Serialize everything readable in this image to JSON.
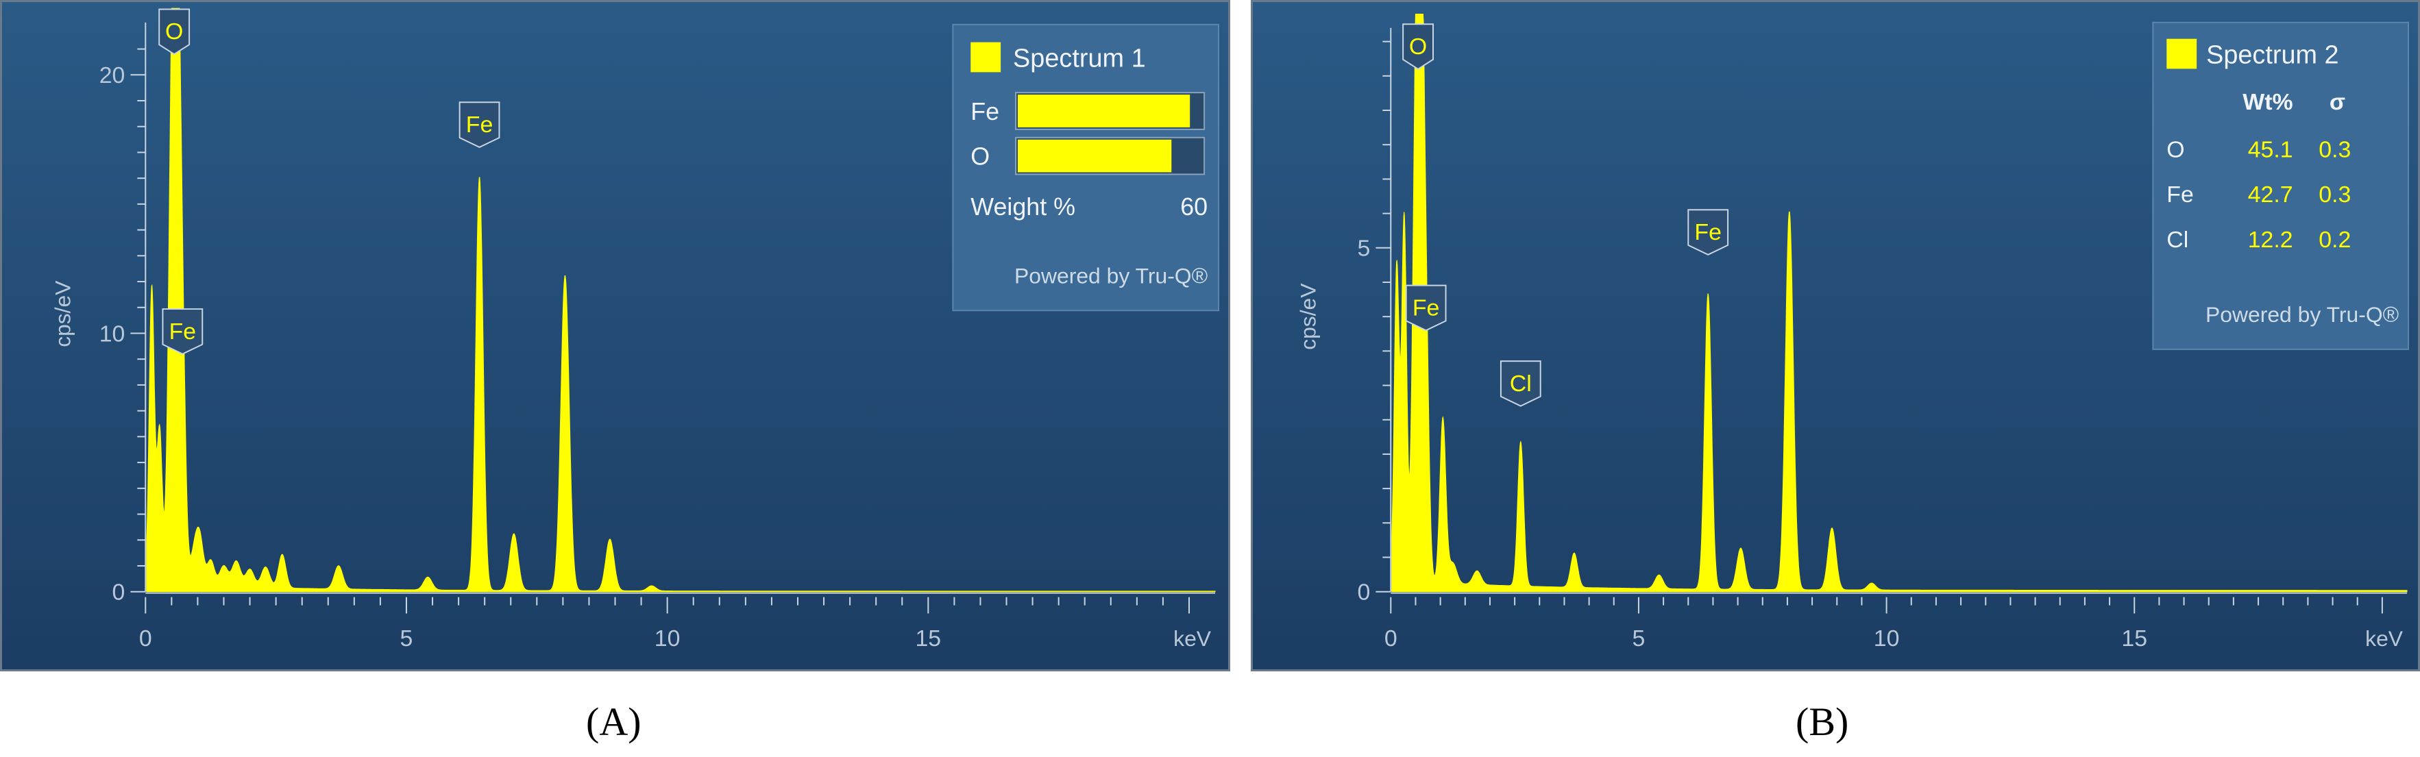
{
  "chart_data": [
    {
      "type": "area",
      "panel_label": "A",
      "xlabel": "keV",
      "ylabel": "cps/eV",
      "xlim": [
        0,
        20.5
      ],
      "ylim": [
        0,
        21.5
      ],
      "x_ticks": [
        0,
        5,
        10,
        15
      ],
      "y_ticks": [
        0,
        10,
        20
      ],
      "peaks": [
        {
          "x": 0.12,
          "y": 11.5,
          "w": 0.05
        },
        {
          "x": 0.27,
          "y": 6.0,
          "w": 0.05
        },
        {
          "x": 0.52,
          "y": 21.5,
          "w": 0.07
        },
        {
          "x": 0.62,
          "y": 16.0,
          "w": 0.06
        },
        {
          "x": 0.71,
          "y": 8.0,
          "w": 0.06
        },
        {
          "x": 0.93,
          "y": 1.2,
          "w": 0.07
        },
        {
          "x": 1.04,
          "y": 1.8,
          "w": 0.07
        },
        {
          "x": 1.25,
          "y": 1.0,
          "w": 0.07
        },
        {
          "x": 1.5,
          "y": 0.8,
          "w": 0.08
        },
        {
          "x": 1.74,
          "y": 1.0,
          "w": 0.08
        },
        {
          "x": 2.0,
          "y": 0.7,
          "w": 0.08
        },
        {
          "x": 2.3,
          "y": 0.8,
          "w": 0.08
        },
        {
          "x": 2.62,
          "y": 1.3,
          "w": 0.07
        },
        {
          "x": 3.7,
          "y": 0.9,
          "w": 0.08
        },
        {
          "x": 5.41,
          "y": 0.5,
          "w": 0.08
        },
        {
          "x": 6.4,
          "y": 16.0,
          "w": 0.07
        },
        {
          "x": 7.06,
          "y": 2.2,
          "w": 0.08
        },
        {
          "x": 8.04,
          "y": 12.2,
          "w": 0.08
        },
        {
          "x": 8.9,
          "y": 2.0,
          "w": 0.08
        },
        {
          "x": 9.7,
          "y": 0.2,
          "w": 0.08
        }
      ],
      "baseline": 0.3,
      "peak_labels": [
        {
          "text": "O",
          "x": 0.55,
          "y": 20.8
        },
        {
          "text": "Fe",
          "x": 0.71,
          "y": 9.2
        },
        {
          "text": "Fe",
          "x": 6.4,
          "y": 17.2
        }
      ],
      "legend": {
        "title": "Spectrum 1",
        "bars": [
          {
            "element": "Fe",
            "value": 56
          },
          {
            "element": "O",
            "value": 50
          }
        ],
        "axis_label": "Weight %",
        "axis_max": "60",
        "footer": "Powered by Tru-Q®"
      }
    },
    {
      "type": "area",
      "panel_label": "B",
      "xlabel": "keV",
      "ylabel": "cps/eV",
      "xlim": [
        0,
        20.5
      ],
      "ylim": [
        0,
        8.0
      ],
      "x_ticks": [
        0,
        5,
        10,
        15
      ],
      "y_ticks": [
        0,
        5
      ],
      "peaks": [
        {
          "x": 0.12,
          "y": 4.6,
          "w": 0.05
        },
        {
          "x": 0.27,
          "y": 5.3,
          "w": 0.05
        },
        {
          "x": 0.52,
          "y": 8.0,
          "w": 0.07
        },
        {
          "x": 0.62,
          "y": 6.0,
          "w": 0.06
        },
        {
          "x": 0.71,
          "y": 3.2,
          "w": 0.06
        },
        {
          "x": 1.05,
          "y": 2.4,
          "w": 0.06
        },
        {
          "x": 1.25,
          "y": 0.3,
          "w": 0.08
        },
        {
          "x": 1.74,
          "y": 0.2,
          "w": 0.08
        },
        {
          "x": 2.62,
          "y": 2.1,
          "w": 0.06
        },
        {
          "x": 3.7,
          "y": 0.5,
          "w": 0.07
        },
        {
          "x": 5.41,
          "y": 0.2,
          "w": 0.08
        },
        {
          "x": 6.4,
          "y": 4.3,
          "w": 0.07
        },
        {
          "x": 7.06,
          "y": 0.6,
          "w": 0.08
        },
        {
          "x": 8.04,
          "y": 5.5,
          "w": 0.08
        },
        {
          "x": 8.9,
          "y": 0.9,
          "w": 0.08
        },
        {
          "x": 9.7,
          "y": 0.1,
          "w": 0.08
        }
      ],
      "baseline": 0.15,
      "peak_labels": [
        {
          "text": "O",
          "x": 0.55,
          "y": 7.6
        },
        {
          "text": "Fe",
          "x": 0.71,
          "y": 3.8
        },
        {
          "text": "Cl",
          "x": 2.62,
          "y": 2.7
        },
        {
          "text": "Fe",
          "x": 6.4,
          "y": 4.9
        }
      ],
      "legend": {
        "title": "Spectrum 2",
        "col_headers": [
          "Wt%",
          "σ"
        ],
        "rows": [
          {
            "element": "O",
            "wt": "45.1",
            "sigma": "0.3"
          },
          {
            "element": "Fe",
            "wt": "42.7",
            "sigma": "0.3"
          },
          {
            "element": "Cl",
            "wt": "12.2",
            "sigma": "0.2"
          }
        ],
        "footer": "Powered by Tru-Q®"
      }
    }
  ],
  "style": {
    "panel_bg_top": "#2a5a86",
    "panel_bg_bottom": "#1c3d63",
    "spectrum_color": "#ffff00",
    "axis_color": "#c9d5e2",
    "tick_label_color": "#b9c8d8",
    "legend_bg": "#3a6a95",
    "legend_text": "#f0f4f8",
    "value_color": "#ffff00"
  },
  "captions": [
    "(A)",
    "(B)"
  ]
}
